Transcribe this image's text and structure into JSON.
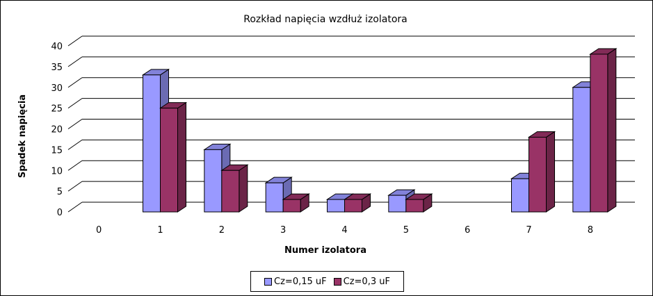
{
  "chart_data": {
    "type": "bar",
    "title": "Rozkład napięcia wzdłuż izolatora",
    "xlabel": "Numer izolatora",
    "ylabel": "Spadek napięcia",
    "categories": [
      "0",
      "1",
      "2",
      "3",
      "4",
      "5",
      "6",
      "7",
      "8"
    ],
    "ylim": [
      0,
      40
    ],
    "yticks": [
      "0",
      "5",
      "10",
      "15",
      "20",
      "25",
      "30",
      "35",
      "40"
    ],
    "grid": true,
    "legend_position": "bottom",
    "series": [
      {
        "name": "Cz=0,15 uF",
        "color": "#9999ff",
        "values": [
          0,
          33,
          15,
          7,
          3,
          4,
          0,
          8,
          30
        ]
      },
      {
        "name": "Cz=0,3 uF",
        "color": "#993366",
        "values": [
          0,
          25,
          10,
          3,
          3,
          3,
          0,
          18,
          38
        ]
      }
    ]
  }
}
